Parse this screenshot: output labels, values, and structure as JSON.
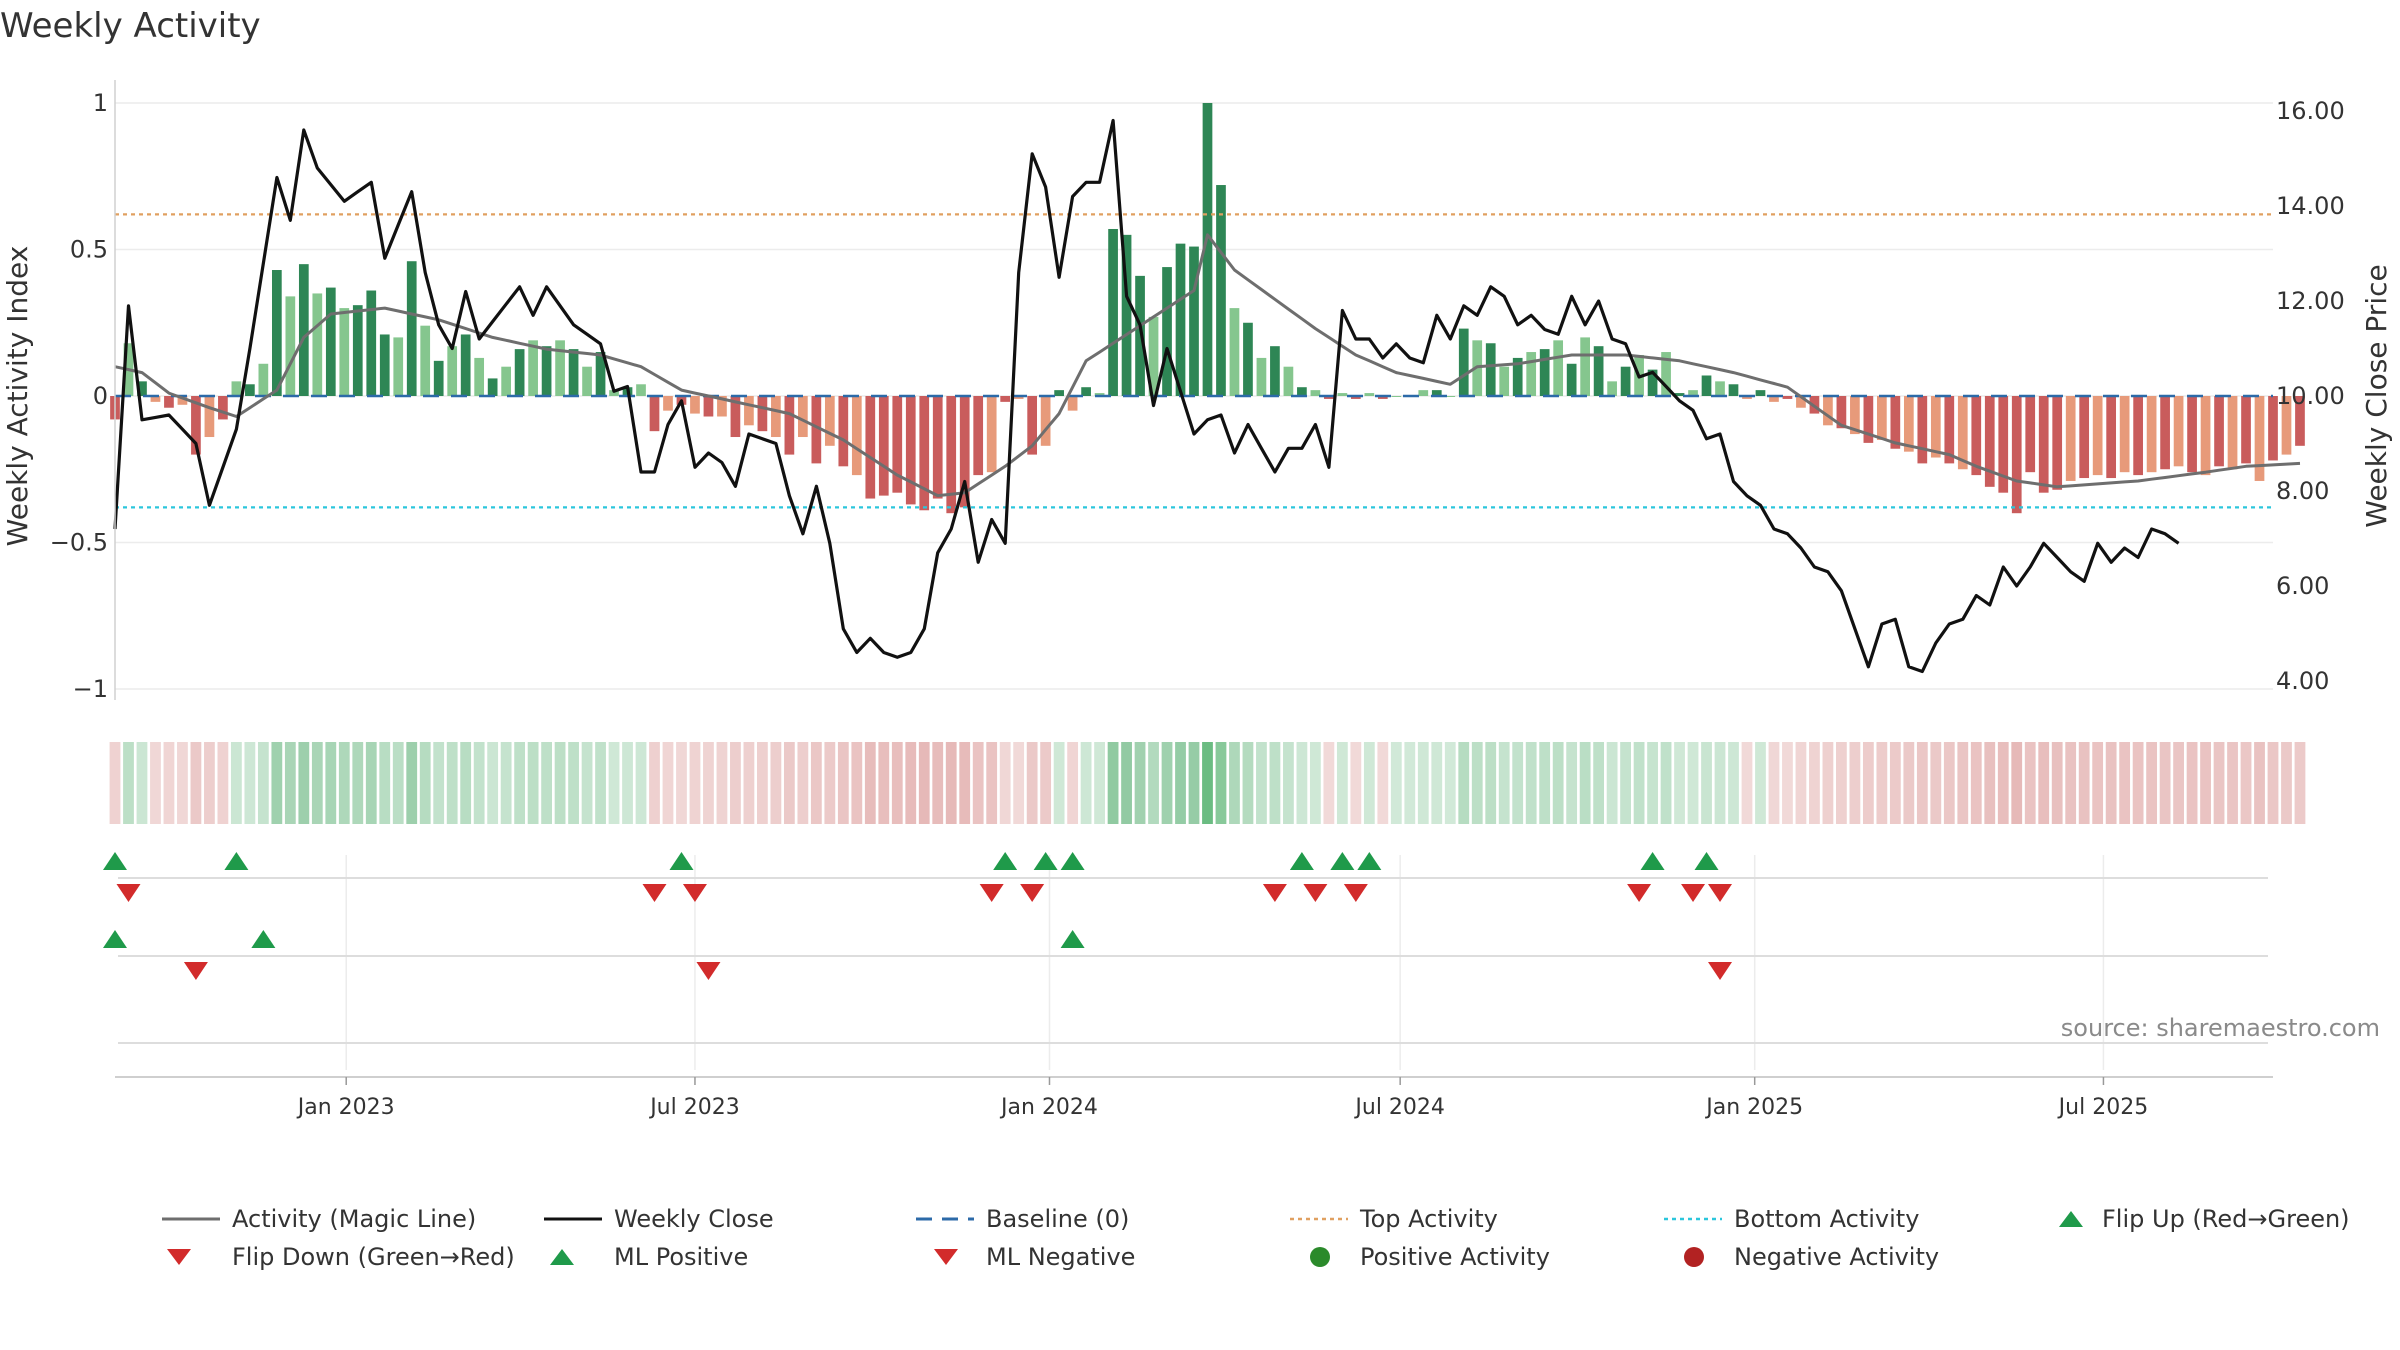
{
  "title": "Weekly Activity",
  "source": "source: sharemaestro.com",
  "colors": {
    "dark_green": "#2e8655",
    "light_green": "#85c68e",
    "dark_red": "#c95c5c",
    "light_red": "#e79a7a",
    "magic_line": "#6e6e6e",
    "close_line": "#111111",
    "baseline": "#2c6aa8",
    "top_line": "#e0a060",
    "bottom_line": "#2bc6dc",
    "flip_up": "#1f9a4a",
    "flip_down": "#d22b2b",
    "pos_dot": "#2b8a2b",
    "neg_dot": "#b22222"
  },
  "chart_data": {
    "type": "bar",
    "title": "Weekly Activity",
    "ylabel_left": "Weekly Activity Index",
    "ylabel_right": "Weekly Close Price",
    "ylim_left": [
      -1.08,
      1.04
    ],
    "ylim_right": [
      3.6,
      16.3
    ],
    "yticks_left": [
      1,
      0.5,
      0,
      -0.5,
      -1
    ],
    "yticks_left_labels": [
      "1",
      "0.5",
      "0",
      "−0.5",
      "−1"
    ],
    "yticks_right": [
      16,
      14,
      12,
      10,
      8,
      6,
      4
    ],
    "yticks_right_labels": [
      "16.00",
      "14.00",
      "12.00",
      "10.00",
      "8.00",
      "6.00",
      "4.00"
    ],
    "x_date_range": [
      "2022-09-03",
      "2025-09-27"
    ],
    "xticks": [
      {
        "date": "2023-01-01",
        "label": "Jan 2023"
      },
      {
        "date": "2023-07-01",
        "label": "Jul 2023"
      },
      {
        "date": "2024-01-01",
        "label": "Jan 2024"
      },
      {
        "date": "2024-07-01",
        "label": "Jul 2024"
      },
      {
        "date": "2025-01-01",
        "label": "Jan 2025"
      },
      {
        "date": "2025-07-01",
        "label": "Jul 2025"
      }
    ],
    "start_date": "2022-09-03",
    "week_step_days": 7,
    "top_activity": 0.62,
    "bottom_activity": -0.38,
    "baseline": 0,
    "anchors_activity": [
      [
        0,
        -0.08
      ],
      [
        1,
        0.18
      ],
      [
        2,
        0.05
      ],
      [
        3,
        -0.02
      ],
      [
        4,
        -0.04
      ],
      [
        5,
        -0.03
      ],
      [
        6,
        -0.2
      ],
      [
        7,
        -0.14
      ],
      [
        8,
        -0.08
      ],
      [
        9,
        0.05
      ],
      [
        10,
        0.04
      ],
      [
        11,
        0.11
      ],
      [
        12,
        0.43
      ],
      [
        13,
        0.34
      ],
      [
        14,
        0.45
      ],
      [
        15,
        0.35
      ],
      [
        16,
        0.37
      ],
      [
        17,
        0.3
      ],
      [
        18,
        0.31
      ],
      [
        19,
        0.36
      ],
      [
        20,
        0.21
      ],
      [
        21,
        0.2
      ],
      [
        22,
        0.46
      ],
      [
        23,
        0.24
      ],
      [
        24,
        0.12
      ],
      [
        25,
        0.17
      ],
      [
        26,
        0.21
      ],
      [
        27,
        0.13
      ],
      [
        28,
        0.06
      ],
      [
        29,
        0.1
      ],
      [
        30,
        0.16
      ],
      [
        31,
        0.19
      ],
      [
        32,
        0.17
      ],
      [
        33,
        0.19
      ],
      [
        34,
        0.16
      ],
      [
        35,
        0.1
      ],
      [
        36,
        0.15
      ],
      [
        37,
        0.02
      ],
      [
        38,
        0.03
      ],
      [
        39,
        0.04
      ],
      [
        40,
        -0.12
      ],
      [
        41,
        -0.05
      ],
      [
        42,
        -0.03
      ],
      [
        43,
        -0.06
      ],
      [
        44,
        -0.07
      ],
      [
        45,
        -0.07
      ],
      [
        46,
        -0.14
      ],
      [
        47,
        -0.1
      ],
      [
        48,
        -0.12
      ],
      [
        49,
        -0.14
      ],
      [
        50,
        -0.2
      ],
      [
        51,
        -0.14
      ],
      [
        52,
        -0.23
      ],
      [
        53,
        -0.17
      ],
      [
        54,
        -0.24
      ],
      [
        55,
        -0.27
      ],
      [
        56,
        -0.35
      ],
      [
        57,
        -0.34
      ],
      [
        58,
        -0.33
      ],
      [
        59,
        -0.37
      ],
      [
        60,
        -0.39
      ],
      [
        61,
        -0.35
      ],
      [
        62,
        -0.4
      ],
      [
        63,
        -0.38
      ],
      [
        64,
        -0.27
      ],
      [
        65,
        -0.26
      ],
      [
        66,
        -0.02
      ],
      [
        67,
        -0.01
      ],
      [
        68,
        -0.2
      ],
      [
        69,
        -0.17
      ],
      [
        70,
        0.02
      ],
      [
        71,
        -0.05
      ],
      [
        72,
        0.03
      ],
      [
        73,
        0.01
      ],
      [
        74,
        0.57
      ],
      [
        75,
        0.55
      ],
      [
        76,
        0.41
      ],
      [
        77,
        0.27
      ],
      [
        78,
        0.44
      ],
      [
        79,
        0.52
      ],
      [
        80,
        0.51
      ],
      [
        81,
        1.0
      ],
      [
        82,
        0.72
      ],
      [
        83,
        0.3
      ],
      [
        84,
        0.25
      ],
      [
        85,
        0.13
      ],
      [
        86,
        0.17
      ],
      [
        87,
        0.1
      ],
      [
        88,
        0.03
      ],
      [
        89,
        0.02
      ],
      [
        90,
        -0.01
      ],
      [
        91,
        0.01
      ],
      [
        92,
        -0.01
      ],
      [
        93,
        0.01
      ],
      [
        94,
        -0.01
      ],
      [
        95,
        0.0
      ],
      [
        96,
        0.0
      ],
      [
        97,
        0.02
      ],
      [
        98,
        0.02
      ],
      [
        99,
        0.0
      ],
      [
        100,
        0.23
      ],
      [
        101,
        0.19
      ],
      [
        102,
        0.18
      ],
      [
        103,
        0.1
      ],
      [
        104,
        0.13
      ],
      [
        105,
        0.15
      ],
      [
        106,
        0.16
      ],
      [
        107,
        0.19
      ],
      [
        108,
        0.11
      ],
      [
        109,
        0.2
      ],
      [
        110,
        0.17
      ],
      [
        111,
        0.05
      ],
      [
        112,
        0.1
      ],
      [
        113,
        0.14
      ],
      [
        114,
        0.09
      ],
      [
        115,
        0.15
      ],
      [
        116,
        0.01
      ],
      [
        117,
        0.02
      ],
      [
        118,
        0.07
      ],
      [
        119,
        0.05
      ],
      [
        120,
        0.04
      ],
      [
        121,
        -0.01
      ],
      [
        122,
        0.02
      ],
      [
        123,
        -0.02
      ],
      [
        124,
        -0.01
      ],
      [
        125,
        -0.04
      ],
      [
        126,
        -0.06
      ],
      [
        127,
        -0.1
      ],
      [
        128,
        -0.11
      ],
      [
        129,
        -0.13
      ],
      [
        130,
        -0.16
      ],
      [
        131,
        -0.15
      ],
      [
        132,
        -0.18
      ],
      [
        133,
        -0.19
      ],
      [
        134,
        -0.23
      ],
      [
        135,
        -0.21
      ],
      [
        136,
        -0.23
      ],
      [
        137,
        -0.25
      ],
      [
        138,
        -0.27
      ],
      [
        139,
        -0.31
      ],
      [
        140,
        -0.33
      ],
      [
        141,
        -0.4
      ],
      [
        142,
        -0.26
      ],
      [
        143,
        -0.33
      ],
      [
        144,
        -0.32
      ],
      [
        145,
        -0.29
      ],
      [
        146,
        -0.28
      ],
      [
        147,
        -0.27
      ],
      [
        148,
        -0.28
      ],
      [
        149,
        -0.26
      ],
      [
        150,
        -0.27
      ],
      [
        151,
        -0.26
      ],
      [
        152,
        -0.25
      ],
      [
        153,
        -0.24
      ],
      [
        154,
        -0.26
      ],
      [
        155,
        -0.27
      ],
      [
        156,
        -0.24
      ],
      [
        157,
        -0.25
      ],
      [
        158,
        -0.23
      ],
      [
        159,
        -0.29
      ],
      [
        160,
        -0.22
      ],
      [
        161,
        -0.2
      ],
      [
        162,
        -0.17
      ]
    ],
    "anchors_magic_line": [
      [
        0,
        0.1
      ],
      [
        2,
        0.08
      ],
      [
        4,
        0.01
      ],
      [
        7,
        -0.04
      ],
      [
        9,
        -0.07
      ],
      [
        12,
        0.02
      ],
      [
        14,
        0.2
      ],
      [
        16,
        0.28
      ],
      [
        20,
        0.3
      ],
      [
        24,
        0.26
      ],
      [
        28,
        0.2
      ],
      [
        32,
        0.16
      ],
      [
        36,
        0.14
      ],
      [
        39,
        0.1
      ],
      [
        42,
        0.02
      ],
      [
        46,
        -0.02
      ],
      [
        50,
        -0.06
      ],
      [
        54,
        -0.15
      ],
      [
        58,
        -0.27
      ],
      [
        61,
        -0.34
      ],
      [
        63,
        -0.33
      ],
      [
        66,
        -0.24
      ],
      [
        68,
        -0.17
      ],
      [
        70,
        -0.06
      ],
      [
        72,
        0.12
      ],
      [
        74,
        0.18
      ],
      [
        76,
        0.24
      ],
      [
        80,
        0.36
      ],
      [
        81,
        0.55
      ],
      [
        83,
        0.43
      ],
      [
        86,
        0.33
      ],
      [
        89,
        0.23
      ],
      [
        92,
        0.14
      ],
      [
        95,
        0.08
      ],
      [
        99,
        0.04
      ],
      [
        101,
        0.1
      ],
      [
        104,
        0.11
      ],
      [
        108,
        0.14
      ],
      [
        112,
        0.14
      ],
      [
        116,
        0.12
      ],
      [
        120,
        0.08
      ],
      [
        124,
        0.03
      ],
      [
        128,
        -0.1
      ],
      [
        132,
        -0.16
      ],
      [
        136,
        -0.2
      ],
      [
        138,
        -0.24
      ],
      [
        141,
        -0.29
      ],
      [
        144,
        -0.31
      ],
      [
        150,
        -0.29
      ],
      [
        155,
        -0.26
      ],
      [
        158,
        -0.24
      ],
      [
        162,
        -0.23
      ]
    ],
    "anchors_close": [
      [
        0,
        7.2
      ],
      [
        1,
        11.9
      ],
      [
        2,
        9.5
      ],
      [
        4,
        9.6
      ],
      [
        6,
        9.0
      ],
      [
        7,
        7.7
      ],
      [
        9,
        9.3
      ],
      [
        10,
        11.0
      ],
      [
        12,
        14.6
      ],
      [
        13,
        13.7
      ],
      [
        14,
        15.6
      ],
      [
        15,
        14.8
      ],
      [
        17,
        14.1
      ],
      [
        19,
        14.5
      ],
      [
        20,
        12.9
      ],
      [
        22,
        14.3
      ],
      [
        23,
        12.6
      ],
      [
        24,
        11.5
      ],
      [
        25,
        11.0
      ],
      [
        26,
        12.2
      ],
      [
        27,
        11.2
      ],
      [
        30,
        12.3
      ],
      [
        31,
        11.7
      ],
      [
        32,
        12.3
      ],
      [
        33,
        11.9
      ],
      [
        34,
        11.5
      ],
      [
        36,
        11.1
      ],
      [
        37,
        10.1
      ],
      [
        38,
        10.2
      ],
      [
        39,
        8.4
      ],
      [
        40,
        8.4
      ],
      [
        41,
        9.4
      ],
      [
        42,
        9.9
      ],
      [
        43,
        8.5
      ],
      [
        44,
        8.8
      ],
      [
        45,
        8.6
      ],
      [
        46,
        8.1
      ],
      [
        47,
        9.2
      ],
      [
        48,
        9.1
      ],
      [
        49,
        9.0
      ],
      [
        50,
        7.9
      ],
      [
        51,
        7.1
      ],
      [
        52,
        8.1
      ],
      [
        53,
        6.9
      ],
      [
        54,
        5.1
      ],
      [
        55,
        4.6
      ],
      [
        56,
        4.9
      ],
      [
        57,
        4.6
      ],
      [
        58,
        4.5
      ],
      [
        59,
        4.6
      ],
      [
        60,
        5.1
      ],
      [
        61,
        6.7
      ],
      [
        62,
        7.2
      ],
      [
        63,
        8.2
      ],
      [
        64,
        6.5
      ],
      [
        65,
        7.4
      ],
      [
        66,
        6.9
      ],
      [
        67,
        12.6
      ],
      [
        68,
        15.1
      ],
      [
        69,
        14.4
      ],
      [
        70,
        12.5
      ],
      [
        71,
        14.2
      ],
      [
        72,
        14.5
      ],
      [
        73,
        14.5
      ],
      [
        74,
        15.8
      ],
      [
        75,
        12.1
      ],
      [
        76,
        11.5
      ],
      [
        77,
        9.8
      ],
      [
        78,
        11.0
      ],
      [
        80,
        9.2
      ],
      [
        81,
        9.5
      ],
      [
        82,
        9.6
      ],
      [
        83,
        8.8
      ],
      [
        84,
        9.4
      ],
      [
        85,
        8.9
      ],
      [
        86,
        8.4
      ],
      [
        87,
        8.9
      ],
      [
        88,
        8.9
      ],
      [
        89,
        9.4
      ],
      [
        90,
        8.5
      ],
      [
        91,
        11.8
      ],
      [
        92,
        11.2
      ],
      [
        93,
        11.2
      ],
      [
        94,
        10.8
      ],
      [
        95,
        11.1
      ],
      [
        96,
        10.8
      ],
      [
        97,
        10.7
      ],
      [
        98,
        11.7
      ],
      [
        99,
        11.2
      ],
      [
        100,
        11.9
      ],
      [
        101,
        11.7
      ],
      [
        102,
        12.3
      ],
      [
        103,
        12.1
      ],
      [
        104,
        11.5
      ],
      [
        105,
        11.7
      ],
      [
        106,
        11.4
      ],
      [
        107,
        11.3
      ],
      [
        108,
        12.1
      ],
      [
        109,
        11.5
      ],
      [
        110,
        12.0
      ],
      [
        111,
        11.2
      ],
      [
        112,
        11.1
      ],
      [
        113,
        10.4
      ],
      [
        114,
        10.5
      ],
      [
        115,
        10.2
      ],
      [
        116,
        9.9
      ],
      [
        117,
        9.7
      ],
      [
        118,
        9.1
      ],
      [
        119,
        9.2
      ],
      [
        120,
        8.2
      ],
      [
        121,
        7.9
      ],
      [
        122,
        7.7
      ],
      [
        123,
        7.2
      ],
      [
        124,
        7.1
      ],
      [
        125,
        6.8
      ],
      [
        126,
        6.4
      ],
      [
        127,
        6.3
      ],
      [
        128,
        5.9
      ],
      [
        129,
        5.1
      ],
      [
        130,
        4.3
      ],
      [
        131,
        5.2
      ],
      [
        132,
        5.3
      ],
      [
        133,
        4.3
      ],
      [
        134,
        4.2
      ],
      [
        135,
        4.8
      ],
      [
        136,
        5.2
      ],
      [
        137,
        5.3
      ],
      [
        138,
        5.8
      ],
      [
        139,
        5.6
      ],
      [
        140,
        6.4
      ],
      [
        141,
        6.0
      ],
      [
        142,
        6.4
      ],
      [
        143,
        6.9
      ],
      [
        144,
        6.6
      ],
      [
        145,
        6.3
      ],
      [
        146,
        6.1
      ],
      [
        147,
        6.9
      ],
      [
        148,
        6.5
      ],
      [
        149,
        6.8
      ],
      [
        150,
        6.6
      ],
      [
        151,
        7.2
      ],
      [
        152,
        7.1
      ],
      [
        153,
        6.9
      ]
    ],
    "flip_up_rows": [
      [
        0,
        9,
        42,
        66,
        69,
        71,
        88,
        91,
        93,
        114,
        118
      ],
      [
        0,
        11,
        71
      ]
    ],
    "flip_down_rows": [
      [
        1,
        40,
        43,
        65,
        68,
        86,
        89,
        92,
        113,
        117,
        119
      ],
      [
        6,
        44,
        119
      ]
    ]
  },
  "legend": [
    {
      "label": "Activity (Magic Line)",
      "symbol": "line-gray"
    },
    {
      "label": "Weekly Close",
      "symbol": "line-black"
    },
    {
      "label": "Baseline (0)",
      "symbol": "dash-blue"
    },
    {
      "label": "Top Activity",
      "symbol": "dotted-orange"
    },
    {
      "label": "Bottom Activity",
      "symbol": "dotted-cyan"
    },
    {
      "label": "Flip Up (Red→Green)",
      "symbol": "triangle-up-green"
    },
    {
      "label": "Flip Down (Green→Red)",
      "symbol": "triangle-down-red"
    },
    {
      "label": "ML Positive",
      "symbol": "triangle-up-green"
    },
    {
      "label": "ML Negative",
      "symbol": "triangle-down-red"
    },
    {
      "label": "Positive Activity",
      "symbol": "dot-green"
    },
    {
      "label": "Negative Activity",
      "symbol": "dot-red"
    }
  ]
}
